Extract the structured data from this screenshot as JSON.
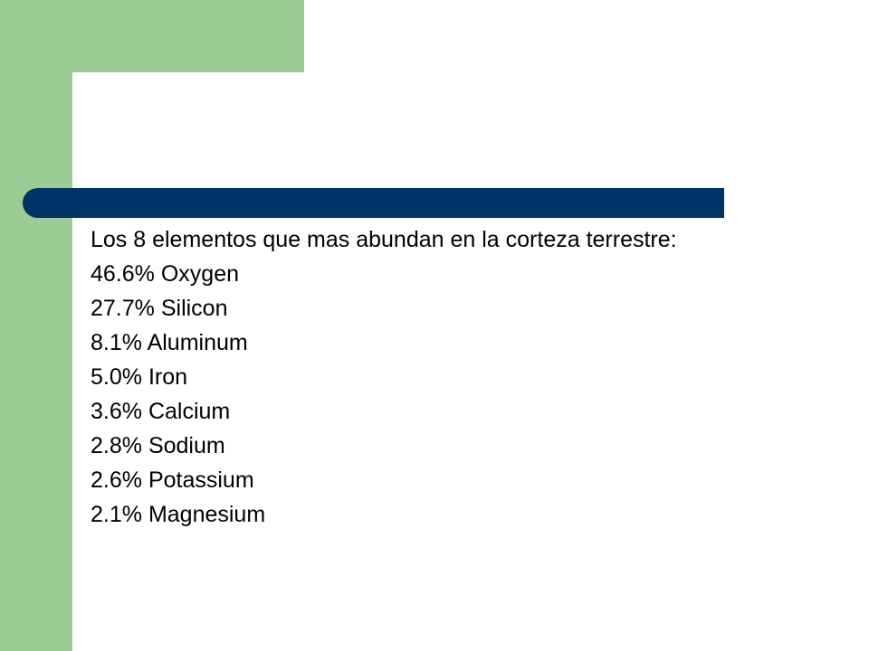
{
  "slide": {
    "intro": "Los 8 elementos que mas abundan en la corteza terrestre:",
    "elements": [
      {
        "percent": "46.6%",
        "name": "Oxygen"
      },
      {
        "percent": "27.7%",
        "name": "Silicon"
      },
      {
        "percent": "8.1%",
        "name": "Aluminum"
      },
      {
        "percent": "5.0%",
        "name": "Iron"
      },
      {
        "percent": "3.6%",
        "name": "Calcium"
      },
      {
        "percent": "2.8%",
        "name": "Sodium"
      },
      {
        "percent": "2.6%",
        "name": "Potassium"
      },
      {
        "percent": "2.1%",
        "name": "Magnesium"
      }
    ]
  },
  "colors": {
    "accent_green": "#9ccb96",
    "title_bar": "#003366",
    "background": "#ffffff",
    "text": "#000000"
  }
}
